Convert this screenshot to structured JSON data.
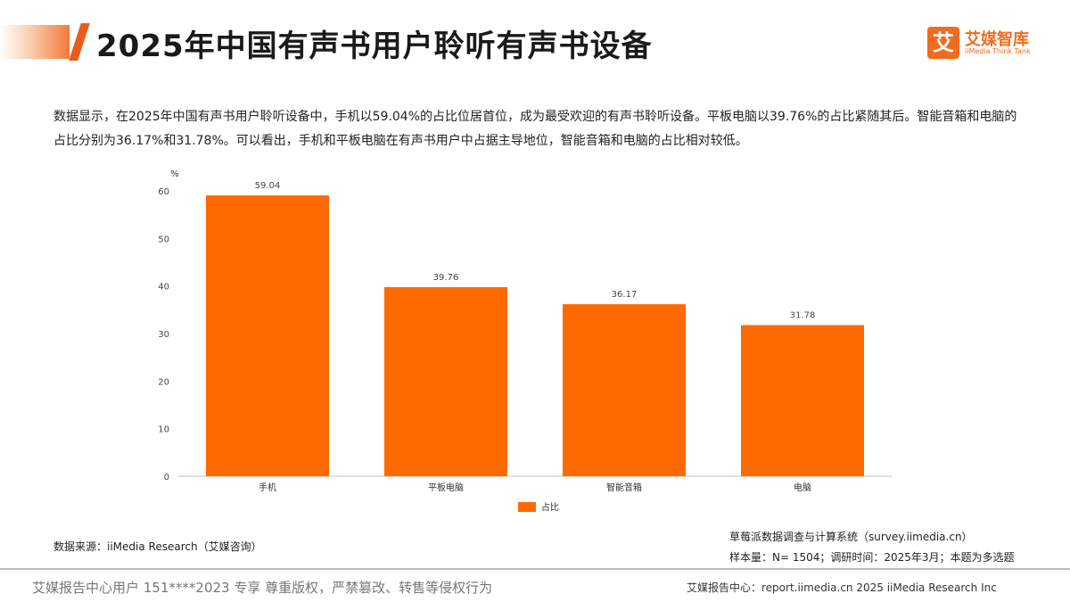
{
  "header": {
    "title": "2025年中国有声书用户聆听有声书设备"
  },
  "logo": {
    "mark": "艾",
    "name": "艾媒智库",
    "subtitle": "iiMedia Think Tank"
  },
  "description": "数据显示，在2025年中国有声书用户聆听设备中，手机以59.04%的占比位居首位，成为最受欢迎的有声书聆听设备。平板电脑以39.76%的占比紧随其后。智能音箱和电脑的占比分别为36.17%和31.78%。可以看出，手机和平板电脑在有声书用户中占据主导地位，智能音箱和电脑的占比相对较低。",
  "chart_data": {
    "type": "bar",
    "categories": [
      "手机",
      "平板电脑",
      "智能音箱",
      "电脑"
    ],
    "series": [
      {
        "name": "占比",
        "values": [
          59.04,
          39.76,
          36.17,
          31.78
        ]
      }
    ],
    "data_labels": [
      "59.04",
      "39.76",
      "36.17",
      "31.78"
    ],
    "y_unit": "%",
    "ylim": [
      0,
      60
    ],
    "yticks": [
      0,
      10,
      20,
      30,
      40,
      50,
      60
    ],
    "grid": false,
    "legend_position": "bottom",
    "bar_color": "#ff6a00"
  },
  "footnotes": {
    "source": "数据来源：iiMedia Research（艾媒咨询）",
    "system": "草莓派数据调查与计算系统（survey.iimedia.cn）",
    "sample": "样本量：N= 1504；调研时间：2025年3月；本题为多选题"
  },
  "footer": {
    "copyright_notice": "艾媒报告中心用户 151****2023 专享 尊重版权，严禁篡改、转售等侵权行为",
    "report_center": "艾媒报告中心：report.iimedia.cn   2025 iiMedia Research Inc"
  },
  "colors": {
    "accent": "#f26b1f",
    "bar": "#ff6a00"
  }
}
